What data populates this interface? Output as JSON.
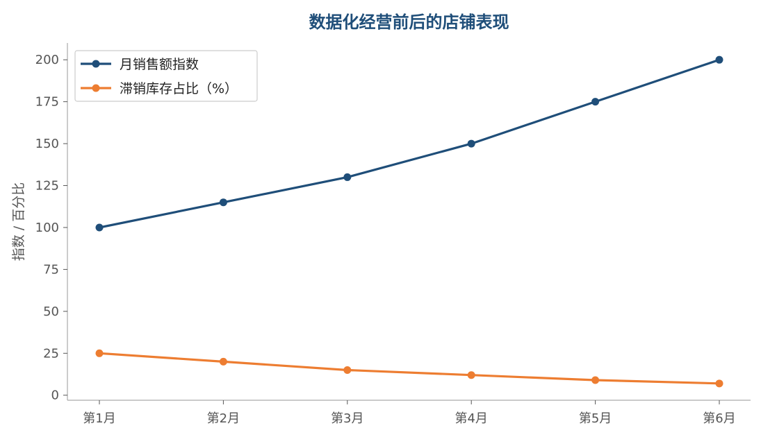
{
  "chart_data": {
    "type": "line",
    "title": "数据化经营前后的店铺表现",
    "xlabel": "",
    "ylabel": "指数 / 百分比",
    "categories": [
      "第1月",
      "第2月",
      "第3月",
      "第4月",
      "第5月",
      "第6月"
    ],
    "ylim": [
      -3,
      210
    ],
    "yticks": [
      0,
      25,
      50,
      75,
      100,
      125,
      150,
      175,
      200
    ],
    "grid": false,
    "legend_position": "top-left",
    "series": [
      {
        "name": "月销售额指数",
        "color": "#1f4e79",
        "values": [
          100,
          115,
          130,
          150,
          175,
          200
        ]
      },
      {
        "name": "滞销库存占比（%）",
        "color": "#ed7d31",
        "values": [
          25,
          20,
          15,
          12,
          9,
          7
        ]
      }
    ]
  }
}
